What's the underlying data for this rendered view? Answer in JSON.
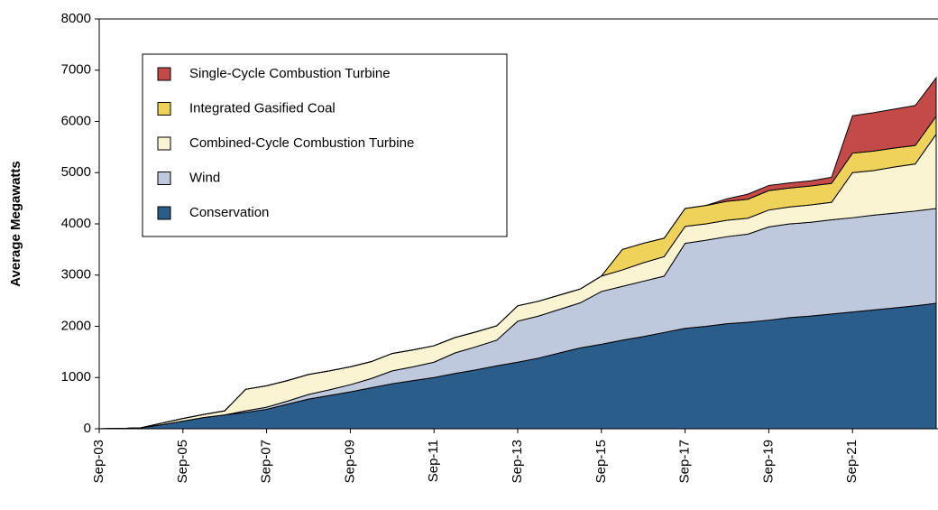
{
  "chart_data": {
    "type": "stacked_area",
    "y_label": "Average Megawatts",
    "categories": [
      "Sep-03",
      null,
      null,
      null,
      "Sep-05",
      null,
      null,
      null,
      "Sep-07",
      null,
      null,
      null,
      "Sep-09",
      null,
      null,
      null,
      "Sep-11",
      null,
      null,
      null,
      "Sep-13",
      null,
      null,
      null,
      "Sep-15",
      null,
      null,
      null,
      "Sep-17",
      null,
      null,
      null,
      "Sep-19",
      null,
      null,
      null,
      "Sep-21",
      null,
      null,
      null,
      null
    ],
    "ylim": [
      0,
      8000
    ],
    "yticks": [
      0,
      1000,
      2000,
      3000,
      4000,
      5000,
      6000,
      7000,
      8000
    ],
    "grid": false,
    "legend": "upper left",
    "series": [
      {
        "name": "Conservation",
        "color": "#2b5d8a",
        "values": [
          0,
          5,
          20,
          80,
          150,
          220,
          270,
          320,
          380,
          480,
          580,
          650,
          720,
          800,
          880,
          940,
          1000,
          1080,
          1150,
          1230,
          1300,
          1380,
          1480,
          1580,
          1650,
          1730,
          1800,
          1880,
          1960,
          2000,
          2050,
          2080,
          2120,
          2170,
          2200,
          2240,
          2280,
          2320,
          2360,
          2400,
          2450
        ]
      },
      {
        "name": "Wind",
        "color": "#bfc9dd",
        "values": [
          0,
          0,
          0,
          0,
          0,
          0,
          0,
          30,
          40,
          60,
          90,
          110,
          140,
          180,
          250,
          270,
          300,
          400,
          450,
          500,
          800,
          820,
          850,
          880,
          1030,
          1050,
          1080,
          1100,
          1660,
          1680,
          1700,
          1720,
          1820,
          1830,
          1830,
          1840,
          1840,
          1850,
          1850,
          1850,
          1850
        ]
      },
      {
        "name": "Combined-Cycle Combustion Turbine",
        "color": "#fbf4d3",
        "values": [
          0,
          0,
          0,
          30,
          50,
          60,
          80,
          420,
          420,
          400,
          390,
          370,
          350,
          330,
          340,
          330,
          320,
          300,
          290,
          280,
          300,
          290,
          280,
          270,
          300,
          320,
          360,
          380,
          330,
          320,
          320,
          310,
          330,
          330,
          340,
          340,
          880,
          870,
          900,
          920,
          1450
        ]
      },
      {
        "name": "Integrated Gasified Coal",
        "color": "#efd25a",
        "values": [
          0,
          0,
          0,
          0,
          0,
          0,
          0,
          0,
          0,
          0,
          0,
          0,
          0,
          0,
          0,
          0,
          0,
          0,
          0,
          0,
          0,
          0,
          0,
          0,
          0,
          400,
          380,
          360,
          350,
          360,
          370,
          370,
          380,
          370,
          370,
          370,
          380,
          380,
          370,
          360,
          350
        ]
      },
      {
        "name": "Single-Cycle Combustion Turbine",
        "color": "#c44a4a",
        "values": [
          0,
          0,
          0,
          0,
          0,
          0,
          0,
          0,
          0,
          0,
          0,
          0,
          0,
          0,
          0,
          0,
          0,
          0,
          0,
          0,
          0,
          0,
          0,
          0,
          0,
          0,
          0,
          0,
          0,
          0,
          50,
          100,
          100,
          100,
          100,
          120,
          730,
          750,
          760,
          780,
          750
        ]
      }
    ]
  }
}
